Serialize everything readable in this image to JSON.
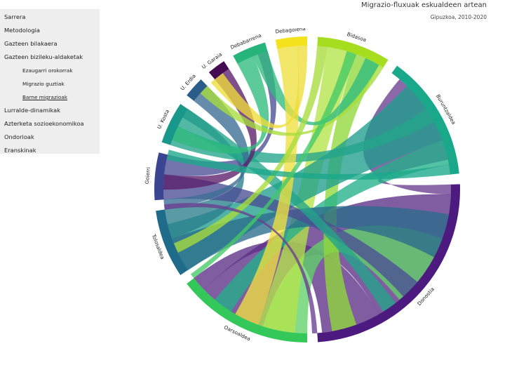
{
  "nav": {
    "items": [
      {
        "label": "Sarrera",
        "level": 0
      },
      {
        "label": "Metodologia",
        "level": 0
      },
      {
        "label": "Gazteen bilakaera",
        "level": 0
      },
      {
        "label": "Gazteen bizileku-aldaketak",
        "level": 0
      },
      {
        "label": "Ezaugarri orokorrak",
        "level": 1
      },
      {
        "label": "Migrazio guztiak",
        "level": 1
      },
      {
        "label": "Barne migrazioak",
        "level": 1,
        "active": true
      },
      {
        "label": "Lurralde-dinamikak",
        "level": 0
      },
      {
        "label": "Azterketa sozioekonomikoa",
        "level": 0
      },
      {
        "label": "Ondorioak",
        "level": 0
      },
      {
        "label": "Eranskinak",
        "level": 0
      }
    ]
  },
  "header": {
    "title": "Migrazio-fluxuak eskualdeen artean",
    "subtitle": "Gipuzkoa, 2010-2020"
  },
  "chord": {
    "regions": [
      {
        "label": "Bidasoa",
        "start": 4,
        "end": 32,
        "color": "#a6dd1e"
      },
      {
        "label": "Buruntzaldea",
        "start": 36,
        "end": 84,
        "color": "#1aa88a"
      },
      {
        "label": "Donostia",
        "start": 88,
        "end": 176,
        "color": "#4d1b80"
      },
      {
        "label": "Oarsoaldea",
        "start": 180,
        "end": 232,
        "color": "#34c759"
      },
      {
        "label": "Tolosaldea",
        "start": 236,
        "end": 262,
        "color": "#1f6c8a"
      },
      {
        "label": "Goierri",
        "start": 266,
        "end": 284,
        "color": "#3b4591"
      },
      {
        "label": "U. Kosta",
        "start": 288,
        "end": 304,
        "color": "#18988b"
      },
      {
        "label": "U. Erdia",
        "start": 308,
        "end": 316,
        "color": "#2a5c8a"
      },
      {
        "label": "U. Garaia",
        "start": 320,
        "end": 327,
        "color": "#440a52"
      },
      {
        "label": "Debabarrena",
        "start": 331,
        "end": 344,
        "color": "#26b47a"
      },
      {
        "label": "Debagoiena",
        "start": 348,
        "end": 360,
        "color": "#f4e31c"
      }
    ],
    "ribbons": [
      {
        "s": [
          92,
          150
        ],
        "t": [
          198,
          226
        ],
        "color": "#5c2e86"
      },
      {
        "s": [
          150,
          174
        ],
        "t": [
          226,
          232
        ],
        "color": "#5c2e86"
      },
      {
        "s": [
          88,
          92
        ],
        "t": [
          40,
          78
        ],
        "color": "#6a3d8f"
      },
      {
        "s": [
          180,
          198
        ],
        "t": [
          110,
          140
        ],
        "color": "#61d26a"
      },
      {
        "s": [
          8,
          20
        ],
        "t": [
          185,
          200
        ],
        "color": "#b4e44a"
      },
      {
        "s": [
          20,
          30
        ],
        "t": [
          160,
          170
        ],
        "color": "#8fd83a"
      },
      {
        "s": [
          44,
          70
        ],
        "t": [
          236,
          256
        ],
        "color": "#1f9d8c"
      },
      {
        "s": [
          70,
          80
        ],
        "t": [
          212,
          220
        ],
        "color": "#22b08a"
      },
      {
        "s": [
          236,
          250
        ],
        "t": [
          100,
          118
        ],
        "color": "#2a6b8c"
      },
      {
        "s": [
          250,
          262
        ],
        "t": [
          300,
          304
        ],
        "color": "#2a7e8c"
      },
      {
        "s": [
          266,
          276
        ],
        "t": [
          130,
          138
        ],
        "color": "#4a4e95"
      },
      {
        "s": [
          276,
          284
        ],
        "t": [
          340,
          344
        ],
        "color": "#4a4e95"
      },
      {
        "s": [
          288,
          296
        ],
        "t": [
          56,
          62
        ],
        "color": "#22a48a"
      },
      {
        "s": [
          296,
          304
        ],
        "t": [
          142,
          148
        ],
        "color": "#22a48a"
      },
      {
        "s": [
          308,
          316
        ],
        "t": [
          262,
          266
        ],
        "color": "#3a6d93"
      },
      {
        "s": [
          320,
          327
        ],
        "t": [
          270,
          276
        ],
        "color": "#5a1e6a"
      },
      {
        "s": [
          331,
          338
        ],
        "t": [
          290,
          296
        ],
        "color": "#2fbb7d"
      },
      {
        "s": [
          338,
          344
        ],
        "t": [
          24,
          30
        ],
        "color": "#2fbb7d"
      },
      {
        "s": [
          348,
          356
        ],
        "t": [
          200,
          210
        ],
        "color": "#f0e040"
      },
      {
        "s": [
          356,
          360
        ],
        "t": [
          318,
          324
        ],
        "color": "#eedc3a"
      },
      {
        "s": [
          4,
          8
        ],
        "t": [
          244,
          248
        ],
        "color": "#a8dc3c"
      },
      {
        "s": [
          30,
          32
        ],
        "t": [
          312,
          316
        ],
        "color": "#a8dc3c"
      },
      {
        "s": [
          80,
          84
        ],
        "t": [
          282,
          286
        ],
        "color": "#1aa88a"
      },
      {
        "s": [
          176,
          178
        ],
        "t": [
          262,
          264
        ],
        "color": "#6a3d8f"
      },
      {
        "s": [
          232,
          234
        ],
        "t": [
          16,
          20
        ],
        "color": "#44c966"
      }
    ]
  }
}
